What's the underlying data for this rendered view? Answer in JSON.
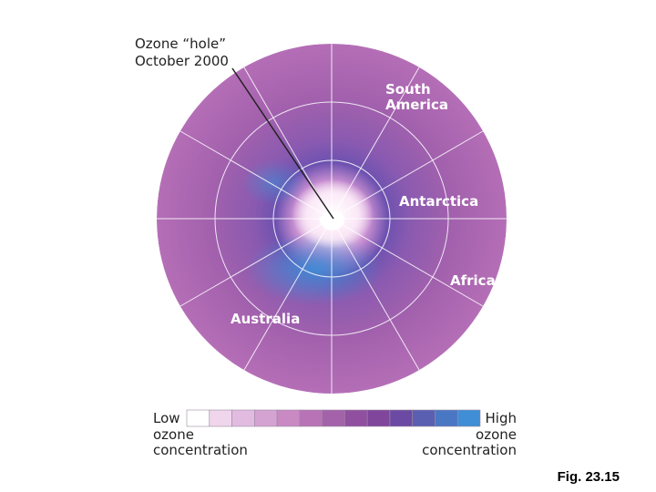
{
  "callout": {
    "line1": "Ozone “hole”",
    "line2": "October 2000"
  },
  "labels": {
    "south_america": [
      "South",
      "America"
    ],
    "antarctica": "Antarctica",
    "africa": "Africa",
    "australia": "Australia"
  },
  "legend": {
    "low": [
      "Low",
      "ozone",
      "concentration"
    ],
    "high": [
      "High",
      "ozone",
      "concentration"
    ]
  },
  "caption": "Fig. 23.15"
}
